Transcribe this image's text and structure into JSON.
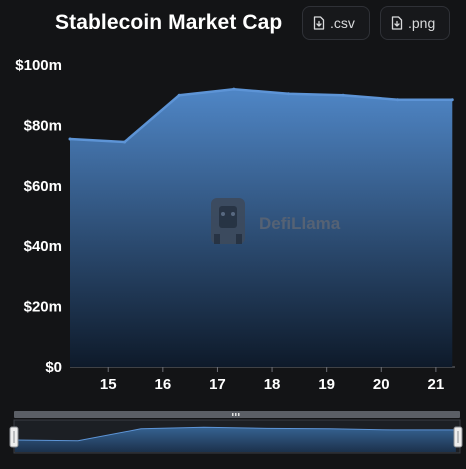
{
  "header": {
    "title": "Stablecoin Market Cap",
    "csv_label": ".csv",
    "png_label": ".png"
  },
  "watermark": {
    "text": "DefiLlama"
  },
  "colors": {
    "background": "#131416",
    "line": "#5d94d6",
    "area_top": "#4f86c6",
    "area_bottom": "#0e1a2a",
    "slider": "#3a6ea5"
  },
  "chart_data": {
    "type": "area",
    "title": "Stablecoin Market Cap",
    "xlabel": "",
    "ylabel": "",
    "x": [
      14.3,
      15.3,
      16.3,
      17.3,
      18.3,
      19.3,
      20.3,
      21.3
    ],
    "values": [
      75.5,
      74.5,
      90.0,
      92.0,
      90.5,
      90.0,
      88.5,
      88.5
    ],
    "xlim": [
      14.3,
      21.35
    ],
    "ylim": [
      0,
      100
    ],
    "yticks": [
      0,
      20,
      40,
      60,
      80,
      100
    ],
    "ytick_labels": [
      "$0",
      "$20m",
      "$40m",
      "$60m",
      "$80m",
      "$100m"
    ],
    "xticks": [
      15,
      16,
      17,
      18,
      19,
      20,
      21
    ],
    "xtick_labels": [
      "15",
      "16",
      "17",
      "18",
      "19",
      "20",
      "21"
    ],
    "grid": false,
    "legend": "none"
  }
}
